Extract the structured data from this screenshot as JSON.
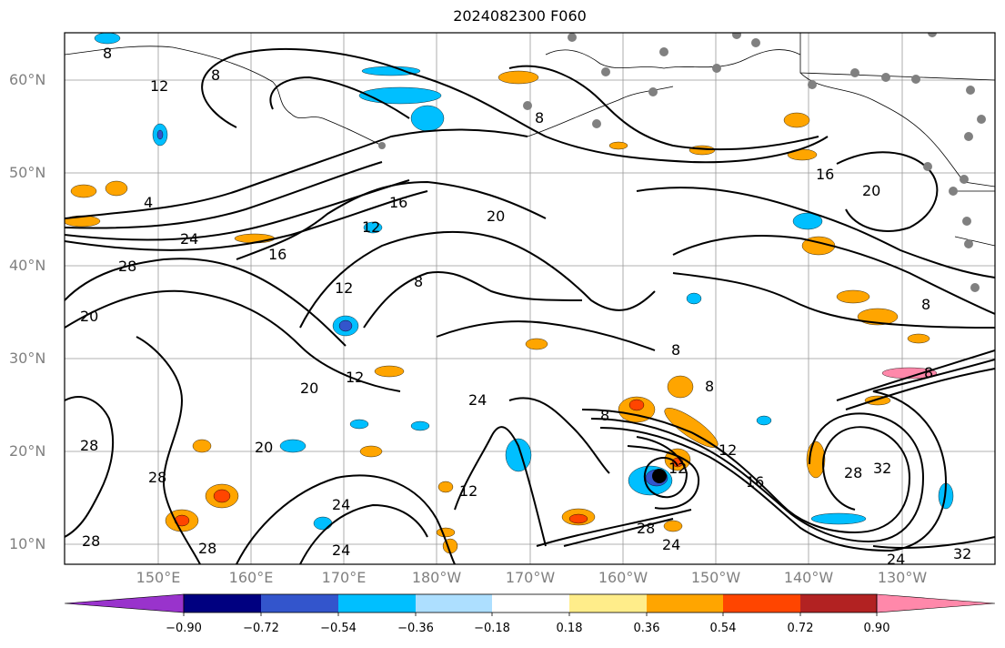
{
  "title": "2024082300 F060",
  "lat_labels": [
    "60°N",
    "50°N",
    "40°N",
    "30°N",
    "20°N",
    "10°N"
  ],
  "lon_labels": [
    "150°E",
    "160°E",
    "170°E",
    "180°W",
    "170°W",
    "160°W",
    "150°W",
    "140°W",
    "130°W"
  ],
  "colorbar": {
    "tick_labels": [
      "−0.90",
      "−0.72",
      "−0.54",
      "−0.36",
      "−0.18",
      "0.18",
      "0.36",
      "0.54",
      "0.72",
      "0.90"
    ],
    "colors": [
      "#9933cc",
      "#000080",
      "#3355cc",
      "#00bfff",
      "#addfff",
      "#ffffff",
      "#ffed8a",
      "#ffa500",
      "#ff4500",
      "#b22222",
      "#ff88aa"
    ]
  },
  "contour_labels": [
    "4",
    "8",
    "8",
    "12",
    "16",
    "16",
    "12",
    "20",
    "20",
    "24",
    "28",
    "20",
    "16",
    "12",
    "8",
    "12",
    "20",
    "24",
    "8",
    "28",
    "28",
    "24",
    "28",
    "12",
    "20",
    "28",
    "24",
    "28",
    "24",
    "8",
    "8",
    "12",
    "16",
    "28",
    "32",
    "32",
    "24",
    "8",
    "12",
    "8",
    "8"
  ],
  "station_marker_color": "#808080",
  "storm_marker_color": "#000000"
}
